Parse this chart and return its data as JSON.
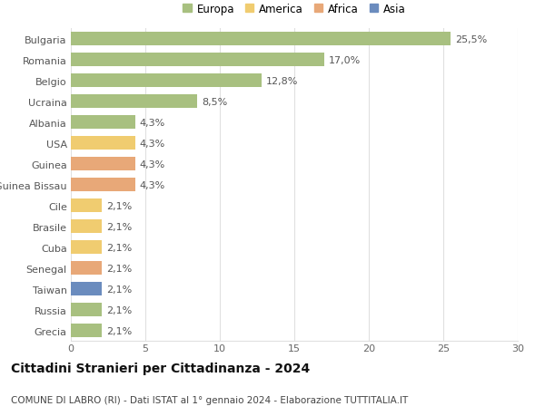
{
  "categories": [
    "Grecia",
    "Russia",
    "Taiwan",
    "Senegal",
    "Cuba",
    "Brasile",
    "Cile",
    "Guinea Bissau",
    "Guinea",
    "USA",
    "Albania",
    "Ucraina",
    "Belgio",
    "Romania",
    "Bulgaria"
  ],
  "values": [
    2.1,
    2.1,
    2.1,
    2.1,
    2.1,
    2.1,
    2.1,
    4.3,
    4.3,
    4.3,
    4.3,
    8.5,
    12.8,
    17.0,
    25.5
  ],
  "labels": [
    "2,1%",
    "2,1%",
    "2,1%",
    "2,1%",
    "2,1%",
    "2,1%",
    "2,1%",
    "4,3%",
    "4,3%",
    "4,3%",
    "4,3%",
    "8,5%",
    "12,8%",
    "17,0%",
    "25,5%"
  ],
  "colors": [
    "#a8c080",
    "#a8c080",
    "#6b8cbe",
    "#e8a878",
    "#f0cc70",
    "#f0cc70",
    "#f0cc70",
    "#e8a878",
    "#e8a878",
    "#f0cc70",
    "#a8c080",
    "#a8c080",
    "#a8c080",
    "#a8c080",
    "#a8c080"
  ],
  "legend": [
    {
      "label": "Europa",
      "color": "#a8c080"
    },
    {
      "label": "America",
      "color": "#f0cc70"
    },
    {
      "label": "Africa",
      "color": "#e8a878"
    },
    {
      "label": "Asia",
      "color": "#6b8cbe"
    }
  ],
  "title": "Cittadini Stranieri per Cittadinanza - 2024",
  "subtitle": "COMUNE DI LABRO (RI) - Dati ISTAT al 1° gennaio 2024 - Elaborazione TUTTITALIA.IT",
  "xlim": [
    0,
    30
  ],
  "xticks": [
    0,
    5,
    10,
    15,
    20,
    25,
    30
  ],
  "background_color": "#ffffff",
  "grid_color": "#e0e0e0",
  "bar_height": 0.65,
  "title_fontsize": 10,
  "subtitle_fontsize": 7.5,
  "tick_fontsize": 8,
  "label_fontsize": 8
}
